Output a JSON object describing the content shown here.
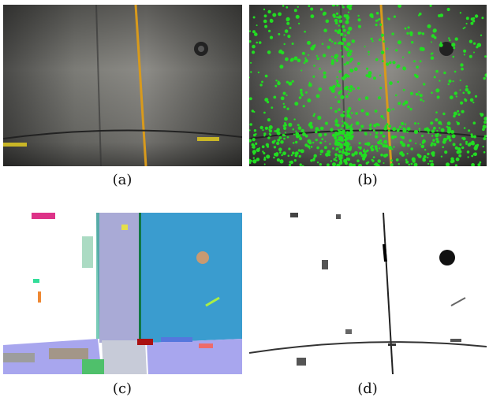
{
  "panels": [
    {
      "caption": "(a)",
      "description": "concrete-surface-photo"
    },
    {
      "caption": "(b)",
      "description": "keypoint-overlay-photo"
    },
    {
      "caption": "(c)",
      "description": "segmentation-map"
    },
    {
      "caption": "(d)",
      "description": "binary-crack-map"
    }
  ],
  "colors": {
    "keypoint": "#22dd22",
    "seg_blue": "#3a9ccf",
    "seg_lavender": "#a9aad6",
    "seg_periwinkle": "#a8a6ee"
  }
}
